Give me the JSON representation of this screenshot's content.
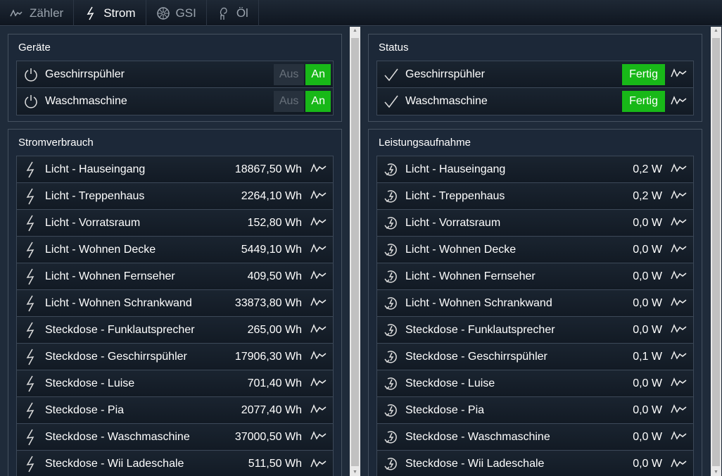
{
  "tabs": [
    {
      "label": "Zähler",
      "icon": "pulse-icon"
    },
    {
      "label": "Strom",
      "icon": "bolt-icon",
      "active": true
    },
    {
      "label": "GSI",
      "icon": "fan-icon"
    },
    {
      "label": "Öl",
      "icon": "oil-icon"
    }
  ],
  "geraete": {
    "title": "Geräte",
    "items": [
      {
        "label": "Geschirrspühler",
        "off": "Aus",
        "on": "An",
        "state": "An"
      },
      {
        "label": "Waschmaschine",
        "off": "Aus",
        "on": "An",
        "state": "An"
      }
    ]
  },
  "status": {
    "title": "Status",
    "items": [
      {
        "label": "Geschirrspühler",
        "status": "Fertig"
      },
      {
        "label": "Waschmaschine",
        "status": "Fertig"
      }
    ]
  },
  "stromverbrauch": {
    "title": "Stromverbrauch",
    "items": [
      {
        "label": "Licht - Hauseingang",
        "value": "18867,50 Wh"
      },
      {
        "label": "Licht - Treppenhaus",
        "value": "2264,10 Wh"
      },
      {
        "label": "Licht - Vorratsraum",
        "value": "152,80 Wh"
      },
      {
        "label": "Licht - Wohnen Decke",
        "value": "5449,10 Wh"
      },
      {
        "label": "Licht - Wohnen Fernseher",
        "value": "409,50 Wh"
      },
      {
        "label": "Licht - Wohnen Schrankwand",
        "value": "33873,80 Wh"
      },
      {
        "label": "Steckdose - Funklautsprecher",
        "value": "265,00 Wh"
      },
      {
        "label": "Steckdose - Geschirrspühler",
        "value": "17906,30 Wh"
      },
      {
        "label": "Steckdose - Luise",
        "value": "701,40 Wh"
      },
      {
        "label": "Steckdose - Pia",
        "value": "2077,40 Wh"
      },
      {
        "label": "Steckdose - Waschmaschine",
        "value": "37000,50 Wh"
      },
      {
        "label": "Steckdose - Wii Ladeschale",
        "value": "511,50 Wh"
      }
    ]
  },
  "leistung": {
    "title": "Leistungsaufnahme",
    "items": [
      {
        "label": "Licht - Hauseingang",
        "value": "0,2 W"
      },
      {
        "label": "Licht - Treppenhaus",
        "value": "0,2 W"
      },
      {
        "label": "Licht - Vorratsraum",
        "value": "0,0 W"
      },
      {
        "label": "Licht - Wohnen Decke",
        "value": "0,0 W"
      },
      {
        "label": "Licht - Wohnen Fernseher",
        "value": "0,0 W"
      },
      {
        "label": "Licht - Wohnen Schrankwand",
        "value": "0,0 W"
      },
      {
        "label": "Steckdose - Funklautsprecher",
        "value": "0,0 W"
      },
      {
        "label": "Steckdose - Geschirrspühler",
        "value": "0,1 W"
      },
      {
        "label": "Steckdose - Luise",
        "value": "0,0 W"
      },
      {
        "label": "Steckdose - Pia",
        "value": "0,0 W"
      },
      {
        "label": "Steckdose - Waschmaschine",
        "value": "0,0 W"
      },
      {
        "label": "Steckdose - Wii Ladeschale",
        "value": "0,0 W"
      }
    ]
  },
  "colors": {
    "accent_green": "#18b818",
    "background": "#1a2533"
  }
}
